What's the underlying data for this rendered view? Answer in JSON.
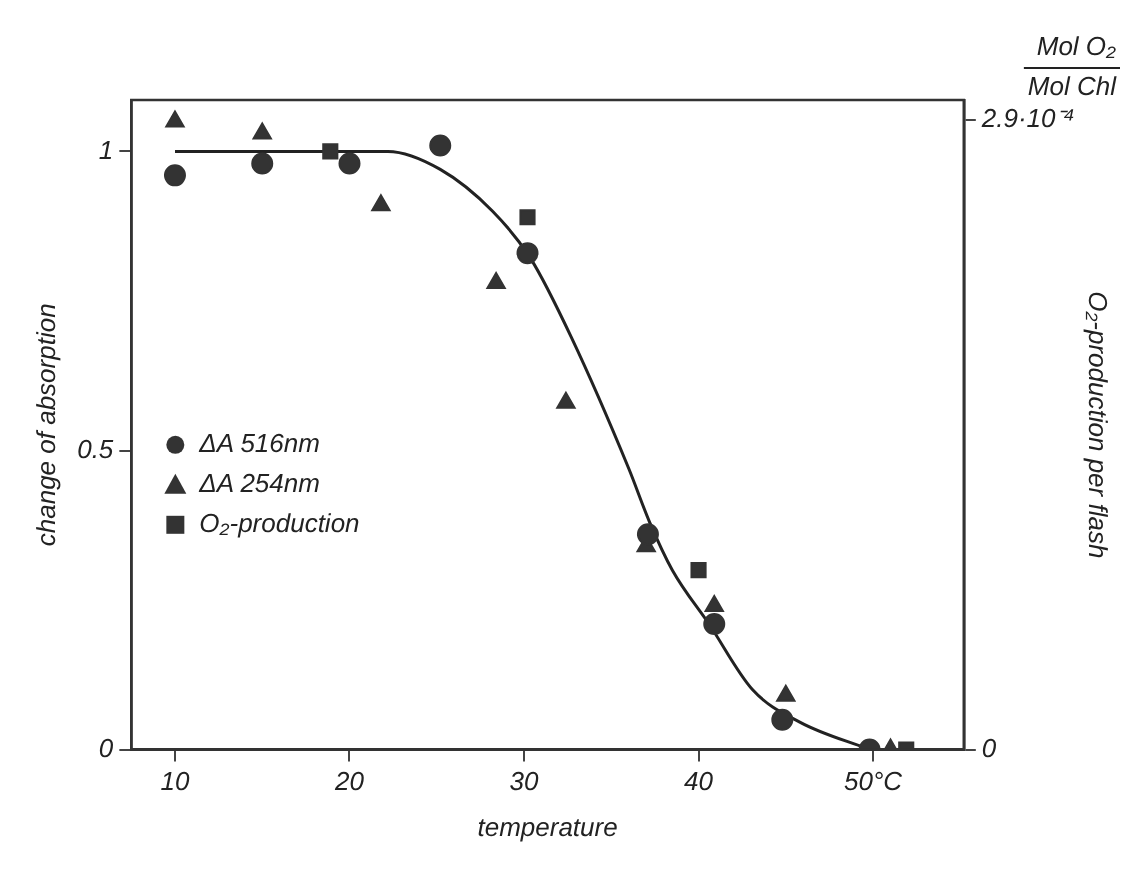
{
  "chart_data": {
    "type": "scatter",
    "xlabel": "temperature",
    "ylabel": "change of absorption",
    "y2label": "O₂-production per flash",
    "annotations": [
      "Mol O₂",
      "Mol Chl"
    ],
    "xlim": [
      7.5,
      55.2
    ],
    "xticks": [
      10,
      20,
      30,
      40,
      {
        "value": 50,
        "label": "50°C"
      }
    ],
    "ylim": [
      0,
      1.086
    ],
    "yticks": [
      0,
      0.5,
      1
    ],
    "y2lim": [
      0,
      0.000299
    ],
    "y2ticks": [
      0,
      {
        "value": 0.00029,
        "label": "2.9·10⁻⁴"
      }
    ],
    "grid": false,
    "legend": "left",
    "series": [
      {
        "name": "ΔA 516nm",
        "marker": "circle",
        "color": "#333333",
        "x": [
          10,
          15,
          20,
          25.2,
          30.2,
          37.1,
          40.9,
          44.8,
          49.8
        ],
        "values": [
          0.96,
          0.98,
          0.98,
          1.01,
          0.83,
          0.36,
          0.21,
          0.05,
          0.0
        ]
      },
      {
        "name": "ΔA 254nm",
        "marker": "triangle",
        "color": "#333333",
        "x": [
          10,
          15,
          21.8,
          28.4,
          32.4,
          37,
          40.9,
          45,
          51
        ],
        "values": [
          1.05,
          1.03,
          0.91,
          0.78,
          0.58,
          0.34,
          0.24,
          0.09,
          0.0
        ]
      },
      {
        "name": "O₂-production",
        "marker": "square",
        "color": "#333333",
        "x": [
          18.9,
          30.2,
          40,
          51.9
        ],
        "values": [
          1.0,
          0.89,
          0.3,
          0.0
        ]
      },
      {
        "type": "line",
        "marker": "none",
        "color": "#222222",
        "x": [
          10,
          15,
          20,
          22.2,
          25.2,
          28.2,
          30.4,
          32.7,
          36,
          37.2,
          38.5,
          40.6,
          43.1,
          45.8,
          49.8
        ],
        "values": [
          1.0,
          1.0,
          1.0,
          1.0,
          0.97,
          0.9,
          0.82,
          0.69,
          0.47,
          0.38,
          0.3,
          0.21,
          0.1,
          0.046,
          0.0
        ]
      }
    ]
  }
}
